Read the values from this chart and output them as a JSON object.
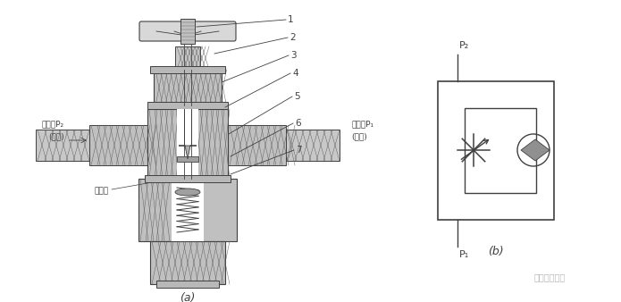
{
  "bg_color": "#ffffff",
  "line_color": "#404040",
  "gray_fill": "#c8c8c8",
  "light_gray": "#e0e0e0",
  "hatch_color": "#606060",
  "label_a": "(a)",
  "label_b": "(b)",
  "watermark": "机械液压论坛",
  "label_out_p2": "出油口P₂",
  "label_fangjin": "(反进)",
  "label_jieliu": "节流口",
  "label_in_p1": "进油口P₁",
  "label_fanhui": "(反回)",
  "part_nums": [
    "1",
    "2",
    "3",
    "4",
    "5",
    "6",
    "7"
  ],
  "sym_p2": "P₂",
  "sym_p1": "P₁"
}
